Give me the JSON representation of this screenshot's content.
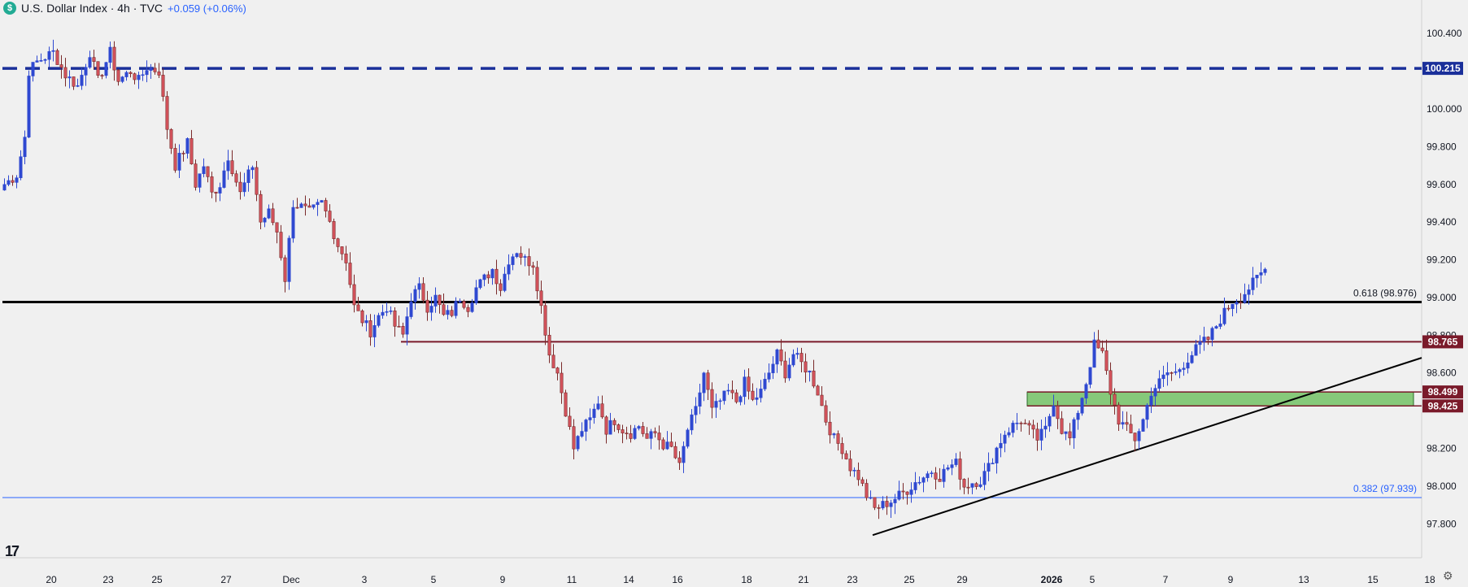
{
  "header": {
    "title": "U.S. Dollar Index · 4h · TVC",
    "change": "+0.059 (+0.06%)",
    "logo_glyph": "$"
  },
  "footer": {
    "tv_logo": "17",
    "settings_icon": "gear-icon"
  },
  "chart_data": {
    "type": "candlestick",
    "y_axis": {
      "min": 97.62,
      "max": 100.5,
      "ticks": [
        "100.400",
        "100.000",
        "99.800",
        "99.600",
        "99.400",
        "99.200",
        "99.000",
        "98.800",
        "98.600",
        "98.200",
        "98.000",
        "97.800"
      ]
    },
    "x_axis": {
      "ticks": [
        {
          "label": "20",
          "bar": 12
        },
        {
          "label": "23",
          "bar": 26
        },
        {
          "label": "25",
          "bar": 38
        },
        {
          "label": "27",
          "bar": 55
        },
        {
          "label": "Dec",
          "bar": 71
        },
        {
          "label": "3",
          "bar": 89
        },
        {
          "label": "5",
          "bar": 106
        },
        {
          "label": "9",
          "bar": 123
        },
        {
          "label": "11",
          "bar": 140
        },
        {
          "label": "14",
          "bar": 154
        },
        {
          "label": "16",
          "bar": 166
        },
        {
          "label": "18",
          "bar": 183
        },
        {
          "label": "21",
          "bar": 197
        },
        {
          "label": "23",
          "bar": 209
        },
        {
          "label": "25",
          "bar": 223
        },
        {
          "label": "29",
          "bar": 236
        },
        {
          "label": "2026",
          "bar": 258,
          "bold": true
        },
        {
          "label": "5",
          "bar": 268
        },
        {
          "label": "7",
          "bar": 286
        },
        {
          "label": "9",
          "bar": 302
        },
        {
          "label": "13",
          "bar": 320
        },
        {
          "label": "15",
          "bar": 337
        },
        {
          "label": "18",
          "bar": 351
        }
      ]
    },
    "colors": {
      "up": "#2f49d1",
      "down": "#d4525c",
      "background": "#f0f0f0",
      "navy": "#1a2f9a",
      "maroon": "#7a1a2a",
      "zone": "#86c97a"
    },
    "levels": [
      {
        "name": "resistance-dashed",
        "price": 100.215,
        "label": "100.215",
        "style": "dashed",
        "color": "#1a2f9a",
        "from_bar": 0,
        "tag": true
      },
      {
        "name": "fib-0618",
        "price": 98.976,
        "label": "0.618 (98.976)",
        "style": "solid",
        "color": "#000000",
        "from_bar": 0,
        "tag": false
      },
      {
        "name": "level-98765",
        "price": 98.765,
        "label": "98.765",
        "style": "solid",
        "color": "#7a1a2a",
        "from_bar": 98,
        "tag": true
      },
      {
        "name": "fib-0382",
        "price": 97.939,
        "label": "0.382 (97.939)",
        "style": "thin",
        "color": "#2962ff",
        "from_bar": 0,
        "tag": false
      }
    ],
    "zone": {
      "top": 98.499,
      "bottom": 98.425,
      "from_bar": 252,
      "to_bar": 347,
      "labels": [
        "98.499",
        "98.425"
      ]
    },
    "trendline": {
      "from": {
        "bar": 214,
        "price": 97.74
      },
      "to": {
        "bar": 359,
        "price": 98.68
      }
    },
    "anchors": [
      [
        0,
        99.6
      ],
      [
        3,
        99.65
      ],
      [
        5,
        99.85
      ],
      [
        6,
        100.2
      ],
      [
        8,
        100.25
      ],
      [
        12,
        100.3
      ],
      [
        15,
        100.18
      ],
      [
        18,
        100.12
      ],
      [
        21,
        100.3
      ],
      [
        23,
        100.15
      ],
      [
        26,
        100.3
      ],
      [
        28,
        100.15
      ],
      [
        31,
        100.2
      ],
      [
        33,
        100.15
      ],
      [
        35,
        100.22
      ],
      [
        38,
        100.2
      ],
      [
        40,
        99.9
      ],
      [
        42,
        99.7
      ],
      [
        45,
        99.82
      ],
      [
        47,
        99.6
      ],
      [
        49,
        99.7
      ],
      [
        51,
        99.55
      ],
      [
        53,
        99.6
      ],
      [
        55,
        99.75
      ],
      [
        58,
        99.55
      ],
      [
        61,
        99.7
      ],
      [
        63,
        99.4
      ],
      [
        65,
        99.45
      ],
      [
        67,
        99.35
      ],
      [
        69,
        99.1
      ],
      [
        71,
        99.5
      ],
      [
        73,
        99.48
      ],
      [
        75,
        99.45
      ],
      [
        78,
        99.5
      ],
      [
        80,
        99.4
      ],
      [
        82,
        99.28
      ],
      [
        84,
        99.2
      ],
      [
        86,
        98.95
      ],
      [
        88,
        98.88
      ],
      [
        90,
        98.82
      ],
      [
        92,
        98.9
      ],
      [
        94,
        98.95
      ],
      [
        96,
        98.85
      ],
      [
        98,
        98.8
      ],
      [
        100,
        99.0
      ],
      [
        102,
        99.05
      ],
      [
        104,
        98.95
      ],
      [
        106,
        99.0
      ],
      [
        108,
        98.9
      ],
      [
        110,
        98.92
      ],
      [
        112,
        99.0
      ],
      [
        114,
        98.95
      ],
      [
        116,
        99.05
      ],
      [
        118,
        99.1
      ],
      [
        120,
        99.15
      ],
      [
        122,
        99.05
      ],
      [
        124,
        99.2
      ],
      [
        126,
        99.25
      ],
      [
        128,
        99.2
      ],
      [
        130,
        99.18
      ],
      [
        132,
        98.95
      ],
      [
        134,
        98.7
      ],
      [
        136,
        98.6
      ],
      [
        138,
        98.4
      ],
      [
        140,
        98.2
      ],
      [
        142,
        98.3
      ],
      [
        144,
        98.35
      ],
      [
        146,
        98.45
      ],
      [
        148,
        98.3
      ],
      [
        150,
        98.35
      ],
      [
        152,
        98.3
      ],
      [
        154,
        98.28
      ],
      [
        156,
        98.32
      ],
      [
        158,
        98.25
      ],
      [
        160,
        98.28
      ],
      [
        162,
        98.22
      ],
      [
        164,
        98.2
      ],
      [
        166,
        98.1
      ],
      [
        168,
        98.3
      ],
      [
        170,
        98.4
      ],
      [
        172,
        98.6
      ],
      [
        174,
        98.4
      ],
      [
        176,
        98.45
      ],
      [
        178,
        98.5
      ],
      [
        180,
        98.45
      ],
      [
        182,
        98.55
      ],
      [
        184,
        98.45
      ],
      [
        186,
        98.5
      ],
      [
        188,
        98.6
      ],
      [
        190,
        98.7
      ],
      [
        192,
        98.6
      ],
      [
        194,
        98.7
      ],
      [
        196,
        98.65
      ],
      [
        198,
        98.6
      ],
      [
        200,
        98.5
      ],
      [
        202,
        98.35
      ],
      [
        204,
        98.25
      ],
      [
        206,
        98.2
      ],
      [
        208,
        98.1
      ],
      [
        210,
        98.05
      ],
      [
        212,
        97.95
      ],
      [
        214,
        97.88
      ],
      [
        216,
        97.9
      ],
      [
        218,
        97.92
      ],
      [
        220,
        97.95
      ],
      [
        222,
        97.98
      ],
      [
        224,
        98.02
      ],
      [
        226,
        98.05
      ],
      [
        228,
        98.08
      ],
      [
        230,
        98.05
      ],
      [
        232,
        98.1
      ],
      [
        234,
        98.12
      ],
      [
        236,
        98.0
      ],
      [
        238,
        98.02
      ],
      [
        240,
        98.03
      ],
      [
        242,
        98.1
      ],
      [
        244,
        98.2
      ],
      [
        246,
        98.28
      ],
      [
        248,
        98.32
      ],
      [
        250,
        98.35
      ],
      [
        252,
        98.3
      ],
      [
        254,
        98.25
      ],
      [
        256,
        98.3
      ],
      [
        258,
        98.45
      ],
      [
        260,
        98.3
      ],
      [
        262,
        98.25
      ],
      [
        264,
        98.4
      ],
      [
        266,
        98.55
      ],
      [
        268,
        98.75
      ],
      [
        270,
        98.7
      ],
      [
        272,
        98.5
      ],
      [
        274,
        98.35
      ],
      [
        276,
        98.3
      ],
      [
        278,
        98.25
      ],
      [
        280,
        98.35
      ],
      [
        282,
        98.5
      ],
      [
        284,
        98.55
      ],
      [
        286,
        98.6
      ],
      [
        288,
        98.6
      ],
      [
        290,
        98.65
      ],
      [
        292,
        98.7
      ],
      [
        294,
        98.75
      ],
      [
        296,
        98.78
      ],
      [
        298,
        98.85
      ],
      [
        300,
        98.92
      ],
      [
        302,
        98.98
      ],
      [
        304,
        99.0
      ],
      [
        306,
        99.05
      ],
      [
        308,
        99.1
      ],
      [
        310,
        99.15
      ]
    ]
  }
}
